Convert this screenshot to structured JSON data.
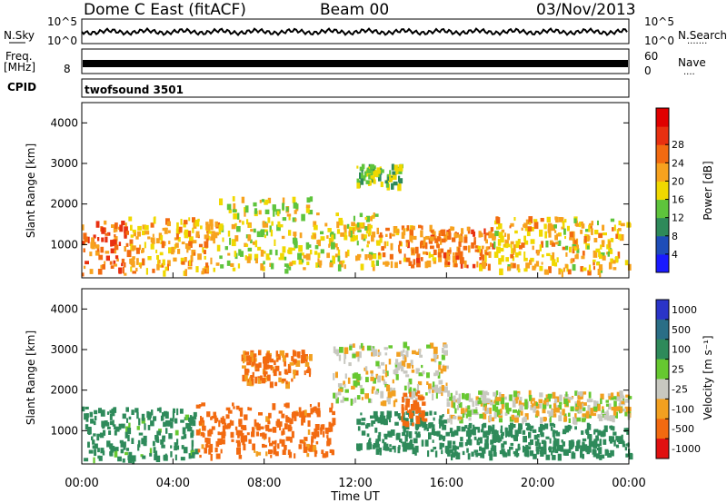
{
  "header": {
    "station": "Dome C East (fitACF)",
    "beam": "Beam 00",
    "date": "03/Nov/2013"
  },
  "noise_panel": {
    "left_label": "N.Sky",
    "left_ticks": [
      "10^5",
      "10^0"
    ],
    "right_ticks": [
      "10^5",
      "10^0"
    ],
    "right_label": "N.Search",
    "right_label_marker": "......."
  },
  "freq_panel": {
    "left_label": "Freq.",
    "unit": "[MHz]",
    "left_tick": "8",
    "right_ticks": [
      "60",
      "0"
    ],
    "right_label": "Nave",
    "right_label_marker": "...."
  },
  "cpid_panel": {
    "label": "CPID",
    "program": "twofsound 3501"
  },
  "time_axis": {
    "ticks": [
      "00:00",
      "04:00",
      "08:00",
      "12:00",
      "16:00",
      "20:00",
      "00:00"
    ],
    "label": "Time UT"
  },
  "range_axis": {
    "label": "Slant Range [km]",
    "ticks": [
      "1000",
      "2000",
      "3000",
      "4000"
    ]
  },
  "power_scale": {
    "label": "Power [dB]",
    "ticks": [
      "4",
      "8",
      "12",
      "16",
      "20",
      "24",
      "28"
    ],
    "colors": [
      "#1a1aff",
      "#1e4db8",
      "#2e8a5a",
      "#5ec43c",
      "#f0d800",
      "#f7a21e",
      "#f26a10",
      "#e83010",
      "#e00000"
    ]
  },
  "velocity_scale": {
    "label": "Velocity [m s⁻¹]",
    "ticks": [
      "1000",
      "500",
      "100",
      "25",
      "-25",
      "-100",
      "-500",
      "-1000"
    ],
    "colors": [
      "#2a34c8",
      "#2a6e86",
      "#2e8a5a",
      "#66c830",
      "#c8c8c0",
      "#f2a020",
      "#f26a10",
      "#e01010"
    ]
  },
  "chart_data": [
    {
      "type": "heatmap",
      "name": "power",
      "xlabel": "Time UT",
      "ylabel": "Slant Range [km]",
      "ylim": [
        180,
        4500
      ],
      "xlim": [
        "00:00",
        "24:00"
      ],
      "colorbar": "Power [dB]",
      "colorbar_ticks": [
        4,
        8,
        12,
        16,
        20,
        24,
        28
      ],
      "regions": [
        {
          "time": [
            0,
            2
          ],
          "range": [
            300,
            1600
          ],
          "level": 26
        },
        {
          "time": [
            2,
            6
          ],
          "range": [
            350,
            1700
          ],
          "level": 21
        },
        {
          "time": [
            6,
            10
          ],
          "range": [
            400,
            2200
          ],
          "level": 17
        },
        {
          "time": [
            10,
            13
          ],
          "range": [
            500,
            1800
          ],
          "level": 19
        },
        {
          "time": [
            12,
            14
          ],
          "range": [
            2500,
            3000
          ],
          "level": 15
        },
        {
          "time": [
            13,
            18
          ],
          "range": [
            500,
            1500
          ],
          "level": 24
        },
        {
          "time": [
            18,
            24
          ],
          "range": [
            350,
            1700
          ],
          "level": 20
        }
      ]
    },
    {
      "type": "heatmap",
      "name": "velocity",
      "xlabel": "Time UT",
      "ylabel": "Slant Range [km]",
      "ylim": [
        180,
        4500
      ],
      "xlim": [
        "00:00",
        "24:00"
      ],
      "colorbar": "Velocity [m s⁻¹]",
      "colorbar_ticks": [
        1000,
        500,
        100,
        25,
        -25,
        -100,
        -500,
        -1000
      ],
      "regions": [
        {
          "time": [
            0,
            5
          ],
          "range": [
            300,
            1600
          ],
          "level": 150
        },
        {
          "time": [
            5,
            11
          ],
          "range": [
            400,
            1700
          ],
          "level": -150
        },
        {
          "time": [
            7,
            10
          ],
          "range": [
            2200,
            3000
          ],
          "level": -120
        },
        {
          "time": [
            11,
            16
          ],
          "range": [
            1700,
            3200
          ],
          "level": 0
        },
        {
          "time": [
            12,
            16
          ],
          "range": [
            500,
            1500
          ],
          "level": 200
        },
        {
          "time": [
            14,
            15
          ],
          "range": [
            1200,
            2000
          ],
          "level": -200
        },
        {
          "time": [
            16,
            24
          ],
          "range": [
            400,
            1200
          ],
          "level": 200
        },
        {
          "time": [
            16,
            24
          ],
          "range": [
            1300,
            2000
          ],
          "level": 0
        }
      ]
    }
  ]
}
